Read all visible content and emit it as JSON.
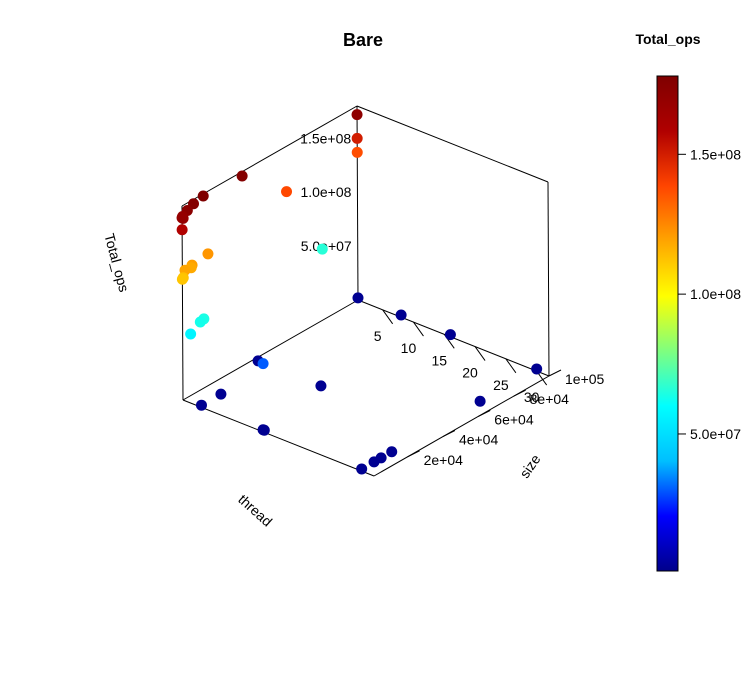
{
  "chart_data": {
    "type": "scatter",
    "title": "Bare",
    "xlabel": "thread",
    "ylabel": "size",
    "zlabel": "Total_ops",
    "x_ticks": [
      "5",
      "10",
      "15",
      "20",
      "25",
      "30"
    ],
    "y_ticks": [
      "2e+04",
      "4e+04",
      "6e+04",
      "8e+04",
      "1e+05"
    ],
    "z_ticks": [
      "5.0e+07",
      "1.0e+08",
      "1.5e+08"
    ],
    "xlim": [
      1,
      32
    ],
    "ylim": [
      1000,
      100000
    ],
    "zlim": [
      0,
      180000000
    ],
    "colorbar": {
      "title": "Total_ops",
      "ticks": [
        "5.0e+07",
        "1.0e+08",
        "1.5e+08"
      ],
      "tick_values": [
        50000000,
        100000000,
        150000000
      ],
      "range": [
        1000000,
        178000000
      ],
      "palette": [
        "#00008B",
        "#0000FF",
        "#00BFFF",
        "#00FFFF",
        "#7FFF7F",
        "#FFFF00",
        "#FFA500",
        "#FF4500",
        "#B00000",
        "#7F0000"
      ]
    },
    "points": [
      {
        "thread": 4,
        "size": 1000,
        "total_ops": 2000000
      },
      {
        "thread": 14,
        "size": 1000,
        "total_ops": 2000000
      },
      {
        "thread": 14.2,
        "size": 1000,
        "total_ops": 2000000
      },
      {
        "thread": 30,
        "size": 1000,
        "total_ops": 2000000
      },
      {
        "thread": 30,
        "size": 8000,
        "total_ops": 2000000
      },
      {
        "thread": 30,
        "size": 12000,
        "total_ops": 2000000
      },
      {
        "thread": 30,
        "size": 18000,
        "total_ops": 2000000
      },
      {
        "thread": 30,
        "size": 100000,
        "total_ops": 2000000
      },
      {
        "thread": 30,
        "size": 68000,
        "total_ops": 2000000
      },
      {
        "thread": 16,
        "size": 100000,
        "total_ops": 2000000
      },
      {
        "thread": 8,
        "size": 100000,
        "total_ops": 2000000
      },
      {
        "thread": 1,
        "size": 100000,
        "total_ops": 2000000
      },
      {
        "thread": 2,
        "size": 40000,
        "total_ops": 2000000
      },
      {
        "thread": 12.2,
        "size": 40000,
        "total_ops": 2000000
      },
      {
        "thread": 4,
        "size": 12000,
        "total_ops": 2000000
      },
      {
        "thread": 8,
        "size": 22000,
        "total_ops": 30000000
      },
      {
        "thread": 1,
        "size": 5500,
        "total_ops": 57000000
      },
      {
        "thread": 1,
        "size": 11000,
        "total_ops": 63000000
      },
      {
        "thread": 1,
        "size": 13000,
        "total_ops": 64000000
      },
      {
        "thread": 1,
        "size": 80000,
        "total_ops": 66000000
      },
      {
        "thread": 1,
        "size": 1000,
        "total_ops": 112000000
      },
      {
        "thread": 1,
        "size": 1500,
        "total_ops": 113000000
      },
      {
        "thread": 1,
        "size": 2500,
        "total_ops": 119000000
      },
      {
        "thread": 1,
        "size": 6000,
        "total_ops": 118000000
      },
      {
        "thread": 1,
        "size": 6500,
        "total_ops": 120000000
      },
      {
        "thread": 1,
        "size": 15500,
        "total_ops": 122000000
      },
      {
        "thread": 1,
        "size": 60000,
        "total_ops": 138000000
      },
      {
        "thread": 1,
        "size": 100000,
        "total_ops": 137000000
      },
      {
        "thread": 1,
        "size": 100000,
        "total_ops": 150000000
      },
      {
        "thread": 1,
        "size": 1000,
        "total_ops": 158000000
      },
      {
        "thread": 1,
        "size": 1000,
        "total_ops": 169000000
      },
      {
        "thread": 1,
        "size": 1300,
        "total_ops": 170000000
      },
      {
        "thread": 1,
        "size": 1600,
        "total_ops": 168000000
      },
      {
        "thread": 1,
        "size": 4000,
        "total_ops": 173000000
      },
      {
        "thread": 1,
        "size": 7500,
        "total_ops": 176000000
      },
      {
        "thread": 1,
        "size": 13000,
        "total_ops": 178000000
      },
      {
        "thread": 1,
        "size": 35000,
        "total_ops": 176000000
      },
      {
        "thread": 1,
        "size": 100000,
        "total_ops": 172000000
      }
    ]
  }
}
